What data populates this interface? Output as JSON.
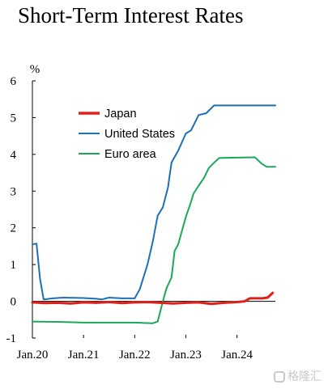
{
  "chart_data": {
    "type": "line",
    "title": "Short-Term Interest Rates",
    "ylabel": "%",
    "xlabel": "",
    "ylim": [
      -1,
      6
    ],
    "xlim": [
      2020.0,
      2024.75
    ],
    "yticks": [
      -1,
      0,
      1,
      2,
      3,
      4,
      5,
      6
    ],
    "xticks": [
      {
        "label": "Jan.20",
        "value": 2020.0
      },
      {
        "label": "Jan.21",
        "value": 2021.0
      },
      {
        "label": "Jan.22",
        "value": 2022.0
      },
      {
        "label": "Jan.23",
        "value": 2023.0
      },
      {
        "label": "Jan.24",
        "value": 2024.0
      }
    ],
    "grid": false,
    "legend_position": "top-left",
    "series": [
      {
        "name": "Japan",
        "color": "#e0201b",
        "points": [
          [
            2020.0,
            -0.03
          ],
          [
            2020.25,
            -0.05
          ],
          [
            2020.5,
            -0.04
          ],
          [
            2020.75,
            -0.06
          ],
          [
            2021.0,
            -0.03
          ],
          [
            2021.25,
            -0.04
          ],
          [
            2021.5,
            -0.02
          ],
          [
            2021.75,
            -0.05
          ],
          [
            2022.0,
            -0.03
          ],
          [
            2022.25,
            -0.02
          ],
          [
            2022.5,
            -0.04
          ],
          [
            2022.75,
            -0.06
          ],
          [
            2023.0,
            -0.04
          ],
          [
            2023.25,
            -0.03
          ],
          [
            2023.5,
            -0.07
          ],
          [
            2023.75,
            -0.04
          ],
          [
            2024.0,
            -0.02
          ],
          [
            2024.15,
            0.0
          ],
          [
            2024.25,
            0.08
          ],
          [
            2024.5,
            0.08
          ],
          [
            2024.6,
            0.1
          ],
          [
            2024.7,
            0.23
          ]
        ]
      },
      {
        "name": "United States",
        "color": "#1f6fb5",
        "points": [
          [
            2020.0,
            1.55
          ],
          [
            2020.08,
            1.57
          ],
          [
            2020.15,
            0.6
          ],
          [
            2020.22,
            0.05
          ],
          [
            2020.4,
            0.08
          ],
          [
            2020.6,
            0.1
          ],
          [
            2021.0,
            0.09
          ],
          [
            2021.25,
            0.07
          ],
          [
            2021.35,
            0.05
          ],
          [
            2021.5,
            0.1
          ],
          [
            2021.75,
            0.08
          ],
          [
            2022.0,
            0.08
          ],
          [
            2022.1,
            0.33
          ],
          [
            2022.25,
            1.0
          ],
          [
            2022.35,
            1.6
          ],
          [
            2022.45,
            2.33
          ],
          [
            2022.55,
            2.56
          ],
          [
            2022.65,
            3.1
          ],
          [
            2022.72,
            3.78
          ],
          [
            2022.85,
            4.1
          ],
          [
            2023.0,
            4.57
          ],
          [
            2023.1,
            4.65
          ],
          [
            2023.25,
            5.07
          ],
          [
            2023.4,
            5.12
          ],
          [
            2023.55,
            5.33
          ],
          [
            2024.0,
            5.33
          ],
          [
            2024.75,
            5.33
          ]
        ]
      },
      {
        "name": "Euro area",
        "color": "#1aa85a",
        "points": [
          [
            2020.0,
            -0.55
          ],
          [
            2020.5,
            -0.56
          ],
          [
            2021.0,
            -0.58
          ],
          [
            2021.5,
            -0.58
          ],
          [
            2022.0,
            -0.58
          ],
          [
            2022.35,
            -0.6
          ],
          [
            2022.45,
            -0.55
          ],
          [
            2022.55,
            0.0
          ],
          [
            2022.62,
            0.35
          ],
          [
            2022.72,
            0.65
          ],
          [
            2022.78,
            1.37
          ],
          [
            2022.85,
            1.55
          ],
          [
            2023.0,
            2.3
          ],
          [
            2023.1,
            2.7
          ],
          [
            2023.15,
            2.93
          ],
          [
            2023.25,
            3.15
          ],
          [
            2023.35,
            3.35
          ],
          [
            2023.45,
            3.63
          ],
          [
            2023.55,
            3.77
          ],
          [
            2023.65,
            3.9
          ],
          [
            2024.0,
            3.91
          ],
          [
            2024.35,
            3.92
          ],
          [
            2024.48,
            3.75
          ],
          [
            2024.58,
            3.66
          ],
          [
            2024.75,
            3.66
          ]
        ]
      }
    ]
  },
  "watermark": "格隆汇"
}
